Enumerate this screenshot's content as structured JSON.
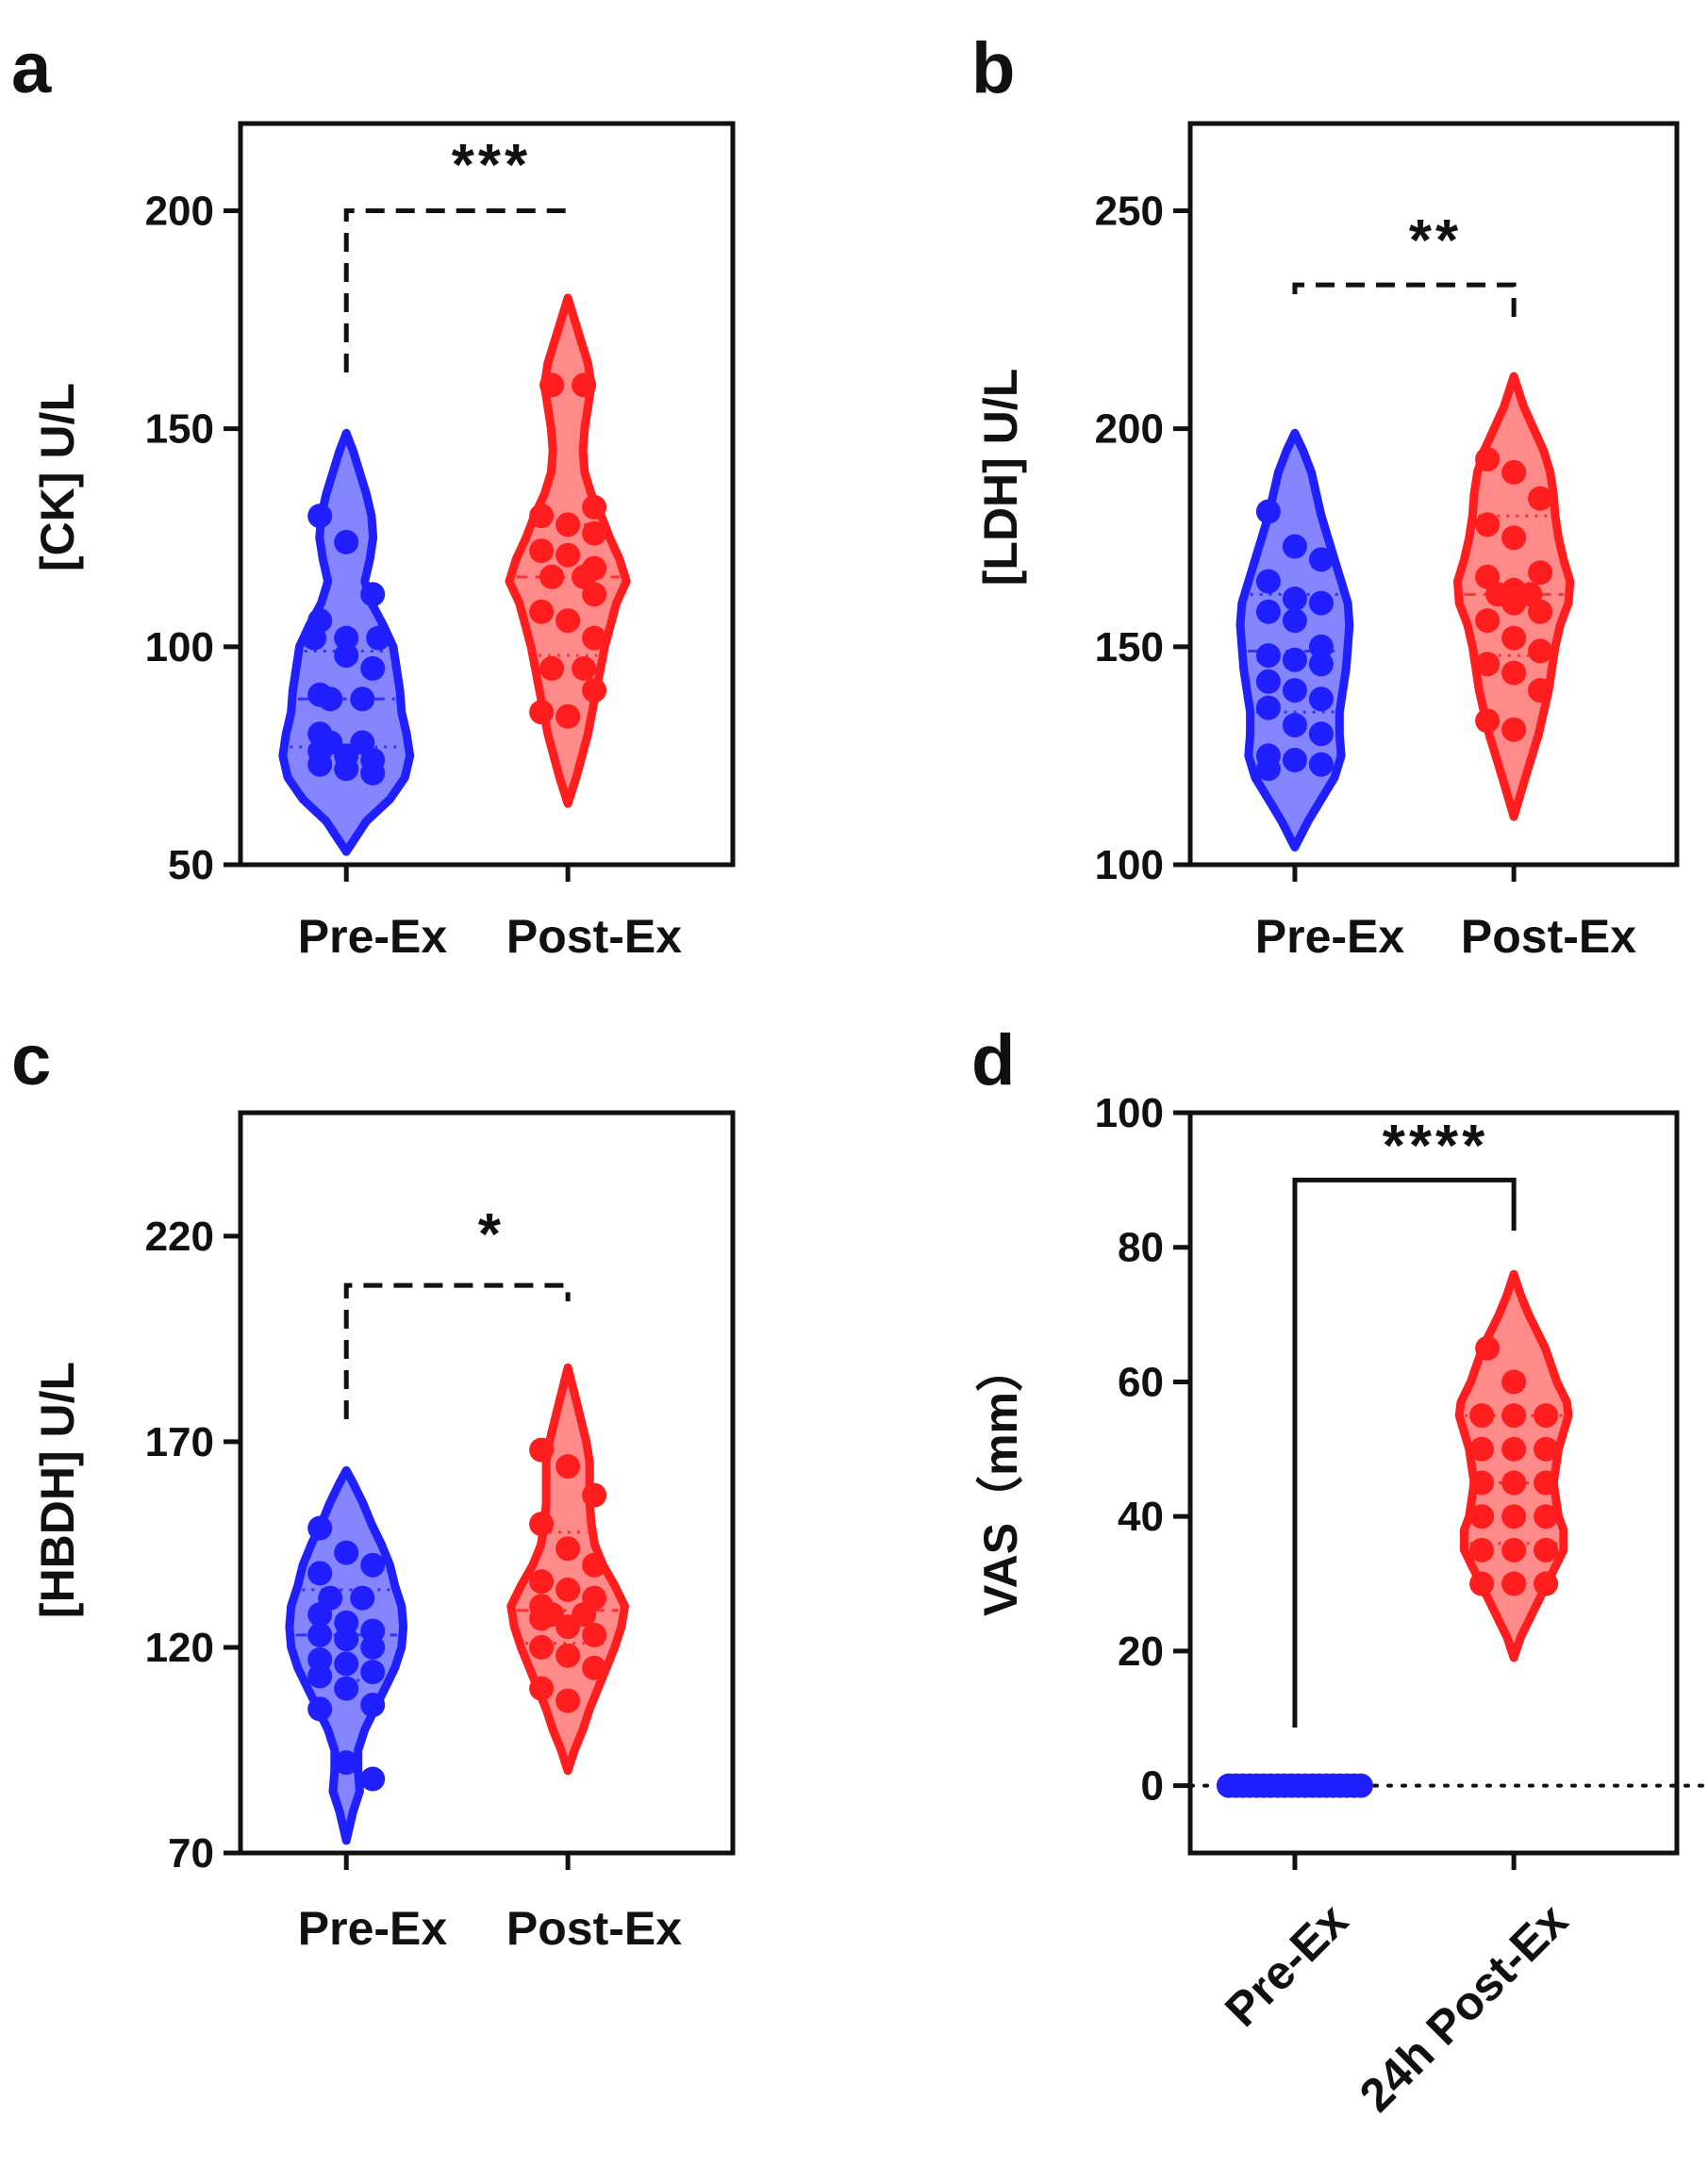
{
  "figure": {
    "colors": {
      "pre": "#1f1fff",
      "pre_fill": "#8585ff",
      "post": "#ff1d1d",
      "post_fill": "#ff8a8a",
      "axis": "#111111"
    }
  },
  "chart_data": [
    {
      "panel": "a",
      "type": "violin",
      "ylabel": "[CK] U/L",
      "ylim": [
        50,
        220
      ],
      "yticks": [
        50,
        100,
        150,
        200
      ],
      "categories": [
        "Pre-Ex",
        "Post-Ex"
      ],
      "significance": {
        "label": "***",
        "style": "dashed",
        "y": 200
      },
      "series": [
        {
          "name": "Pre-Ex",
          "points": [
            130,
            124,
            112,
            106,
            102,
            102,
            102,
            98,
            95,
            89,
            88,
            88,
            80,
            78,
            78,
            76,
            75,
            74,
            73,
            72,
            71
          ],
          "median": 88,
          "q1": 77,
          "q3": 99,
          "violin": [
            [
              53,
              0
            ],
            [
              60,
              0.12
            ],
            [
              65,
              0.26
            ],
            [
              70,
              0.35
            ],
            [
              75,
              0.38
            ],
            [
              80,
              0.36
            ],
            [
              85,
              0.33
            ],
            [
              90,
              0.32
            ],
            [
              95,
              0.3
            ],
            [
              100,
              0.28
            ],
            [
              105,
              0.22
            ],
            [
              110,
              0.15
            ],
            [
              115,
              0.11
            ],
            [
              120,
              0.14
            ],
            [
              125,
              0.16
            ],
            [
              130,
              0.15
            ],
            [
              135,
              0.12
            ],
            [
              140,
              0.08
            ],
            [
              145,
              0.04
            ],
            [
              149,
              0
            ]
          ]
        },
        {
          "name": "Post-Ex",
          "points": [
            160,
            160,
            132,
            130,
            128,
            126,
            122,
            121,
            118,
            116,
            116,
            112,
            108,
            106,
            102,
            95,
            95,
            90,
            85,
            84
          ],
          "median": 116,
          "q1": 98,
          "q3": 128,
          "violin": [
            [
              64,
              0
            ],
            [
              70,
              0.05
            ],
            [
              80,
              0.12
            ],
            [
              90,
              0.17
            ],
            [
              100,
              0.22
            ],
            [
              110,
              0.29
            ],
            [
              115,
              0.35
            ],
            [
              120,
              0.31
            ],
            [
              125,
              0.25
            ],
            [
              130,
              0.2
            ],
            [
              135,
              0.14
            ],
            [
              140,
              0.1
            ],
            [
              145,
              0.09
            ],
            [
              150,
              0.1
            ],
            [
              155,
              0.12
            ],
            [
              160,
              0.14
            ],
            [
              165,
              0.12
            ],
            [
              170,
              0.08
            ],
            [
              175,
              0.04
            ],
            [
              180,
              0
            ]
          ]
        }
      ]
    },
    {
      "panel": "b",
      "type": "violin",
      "ylabel": "[LDH] U/L",
      "ylim": [
        100,
        270
      ],
      "yticks": [
        100,
        150,
        200,
        250
      ],
      "categories": [
        "Pre-Ex",
        "Post-Ex"
      ],
      "significance": {
        "label": "**",
        "style": "dashed",
        "y": 233
      },
      "series": [
        {
          "name": "Pre-Ex",
          "points": [
            181,
            173,
            170,
            165,
            161,
            160,
            158,
            156,
            150,
            148,
            147,
            146,
            142,
            140,
            138,
            136,
            132,
            130,
            125,
            124,
            123,
            122
          ],
          "median": 149,
          "q1": 135,
          "q3": 162,
          "violin": [
            [
              104,
              0
            ],
            [
              110,
              0.08
            ],
            [
              115,
              0.16
            ],
            [
              120,
              0.24
            ],
            [
              125,
              0.28
            ],
            [
              130,
              0.27
            ],
            [
              135,
              0.27
            ],
            [
              140,
              0.29
            ],
            [
              145,
              0.31
            ],
            [
              150,
              0.32
            ],
            [
              155,
              0.33
            ],
            [
              160,
              0.32
            ],
            [
              165,
              0.28
            ],
            [
              170,
              0.24
            ],
            [
              175,
              0.2
            ],
            [
              180,
              0.16
            ],
            [
              185,
              0.13
            ],
            [
              190,
              0.1
            ],
            [
              195,
              0.05
            ],
            [
              199,
              0
            ]
          ]
        },
        {
          "name": "Post-Ex",
          "points": [
            193,
            190,
            184,
            178,
            175,
            167,
            166,
            163,
            162,
            162,
            160,
            158,
            156,
            152,
            149,
            146,
            144,
            140,
            133,
            131
          ],
          "median": 162,
          "q1": 148,
          "q3": 180,
          "violin": [
            [
              111,
              0
            ],
            [
              120,
              0.07
            ],
            [
              130,
              0.15
            ],
            [
              140,
              0.21
            ],
            [
              145,
              0.23
            ],
            [
              150,
              0.25
            ],
            [
              155,
              0.28
            ],
            [
              160,
              0.33
            ],
            [
              165,
              0.34
            ],
            [
              170,
              0.3
            ],
            [
              175,
              0.27
            ],
            [
              180,
              0.25
            ],
            [
              185,
              0.24
            ],
            [
              190,
              0.22
            ],
            [
              195,
              0.18
            ],
            [
              200,
              0.12
            ],
            [
              205,
              0.06
            ],
            [
              212,
              0
            ]
          ]
        }
      ]
    },
    {
      "panel": "c",
      "type": "violin",
      "ylabel": "[HBDH] U/L",
      "ylim": [
        70,
        250
      ],
      "yticks": [
        70,
        120,
        170,
        220
      ],
      "categories": [
        "Pre-Ex",
        "Post-Ex"
      ],
      "significance": {
        "label": "*",
        "style": "dashed",
        "y": 208
      },
      "series": [
        {
          "name": "Pre-Ex",
          "points": [
            149,
            143,
            140,
            138,
            132,
            132,
            128,
            126,
            124,
            123,
            122,
            120,
            117,
            116,
            114,
            113,
            110,
            106,
            105,
            92,
            88
          ],
          "median": 123,
          "q1": 112,
          "q3": 134,
          "violin": [
            [
              73,
              0
            ],
            [
              80,
              0.04
            ],
            [
              85,
              0.08
            ],
            [
              90,
              0.07
            ],
            [
              95,
              0.07
            ],
            [
              100,
              0.11
            ],
            [
              105,
              0.17
            ],
            [
              110,
              0.23
            ],
            [
              115,
              0.29
            ],
            [
              120,
              0.33
            ],
            [
              125,
              0.34
            ],
            [
              130,
              0.33
            ],
            [
              135,
              0.29
            ],
            [
              140,
              0.26
            ],
            [
              145,
              0.21
            ],
            [
              150,
              0.15
            ],
            [
              155,
              0.1
            ],
            [
              160,
              0.04
            ],
            [
              163,
              0
            ]
          ]
        },
        {
          "name": "Post-Ex",
          "points": [
            168,
            164,
            157,
            150,
            144,
            140,
            136,
            134,
            132,
            130,
            128,
            128,
            127,
            125,
            123,
            120,
            118,
            115,
            110,
            107
          ],
          "median": 129,
          "q1": 121,
          "q3": 148,
          "violin": [
            [
              90,
              0
            ],
            [
              95,
              0.04
            ],
            [
              100,
              0.09
            ],
            [
              105,
              0.13
            ],
            [
              110,
              0.18
            ],
            [
              115,
              0.23
            ],
            [
              120,
              0.28
            ],
            [
              125,
              0.32
            ],
            [
              130,
              0.34
            ],
            [
              135,
              0.28
            ],
            [
              140,
              0.21
            ],
            [
              145,
              0.16
            ],
            [
              150,
              0.14
            ],
            [
              155,
              0.13
            ],
            [
              160,
              0.13
            ],
            [
              165,
              0.13
            ],
            [
              170,
              0.11
            ],
            [
              175,
              0.08
            ],
            [
              180,
              0.05
            ],
            [
              188,
              0
            ]
          ]
        }
      ]
    },
    {
      "panel": "d",
      "type": "violin",
      "ylabel": "VAS（mm）",
      "ylim": [
        -10,
        100
      ],
      "yticks": [
        0,
        20,
        40,
        60,
        80,
        100
      ],
      "categories": [
        "Pre-Ex",
        "24h Post-Ex"
      ],
      "categories_rotated": true,
      "zero_line": true,
      "significance": {
        "label": "****",
        "style": "solid",
        "y": 90
      },
      "series": [
        {
          "name": "Pre-Ex",
          "points": [
            0,
            0,
            0,
            0,
            0,
            0,
            0,
            0,
            0,
            0,
            0,
            0,
            0,
            0,
            0,
            0,
            0,
            0,
            0,
            0
          ],
          "violin": []
        },
        {
          "name": "24h Post-Ex",
          "points": [
            65,
            60,
            55,
            55,
            55,
            50,
            50,
            50,
            45,
            45,
            45,
            40,
            40,
            40,
            35,
            35,
            35,
            30,
            30,
            30
          ],
          "median": 45,
          "q1": 36,
          "q3": 55,
          "violin": [
            [
              19,
              0
            ],
            [
              22,
              0.04
            ],
            [
              25,
              0.1
            ],
            [
              30,
              0.2
            ],
            [
              35,
              0.3
            ],
            [
              38,
              0.3
            ],
            [
              40,
              0.27
            ],
            [
              45,
              0.24
            ],
            [
              50,
              0.27
            ],
            [
              55,
              0.33
            ],
            [
              57,
              0.32
            ],
            [
              60,
              0.26
            ],
            [
              65,
              0.19
            ],
            [
              70,
              0.09
            ],
            [
              73,
              0.04
            ],
            [
              76,
              0
            ]
          ]
        }
      ]
    }
  ]
}
